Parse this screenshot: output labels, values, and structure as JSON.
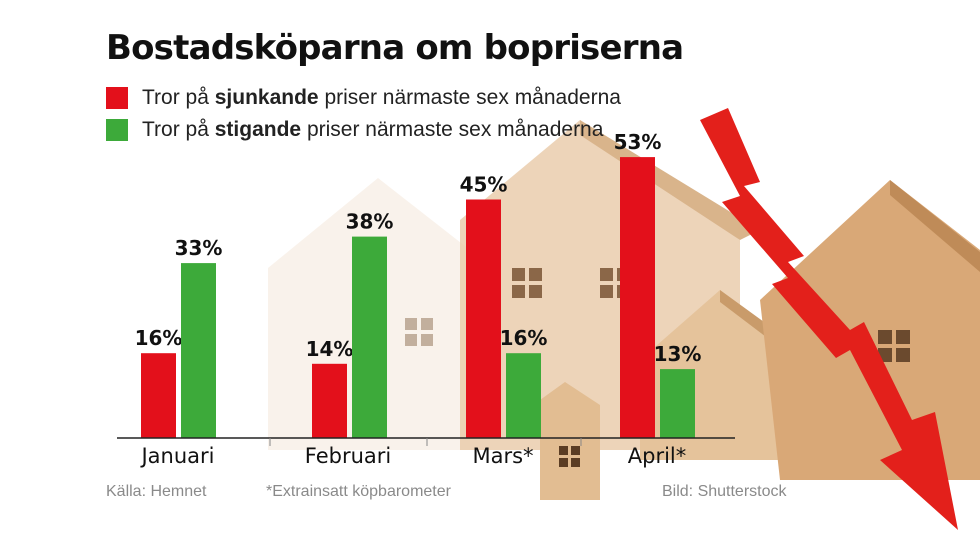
{
  "title": "Bostadsköparna om bopriserna",
  "legend": [
    {
      "prefix": "Tror på ",
      "bold": "sjunkande",
      "suffix": " priser närmaste sex månaderna",
      "color": "#e3101b"
    },
    {
      "prefix": "Tror på ",
      "bold": "stigande",
      "suffix": " priser närmaste sex månaderna",
      "color": "#3daa3a"
    }
  ],
  "chart_data": {
    "type": "bar",
    "categories": [
      "Januari",
      "Februari",
      "Mars*",
      "April*"
    ],
    "series": [
      {
        "values": [
          16,
          14,
          45,
          53
        ],
        "color": "#e3101b"
      },
      {
        "values": [
          33,
          38,
          16,
          13
        ],
        "color": "#3daa3a"
      }
    ],
    "value_suffix": "%",
    "ylim": [
      0,
      60
    ],
    "grid": false,
    "legend_position": "top-left"
  },
  "footer": {
    "source": "Källa: Hemnet",
    "note": "*Extrainsatt köpbarometer",
    "credit": "Bild: Shutterstock"
  }
}
